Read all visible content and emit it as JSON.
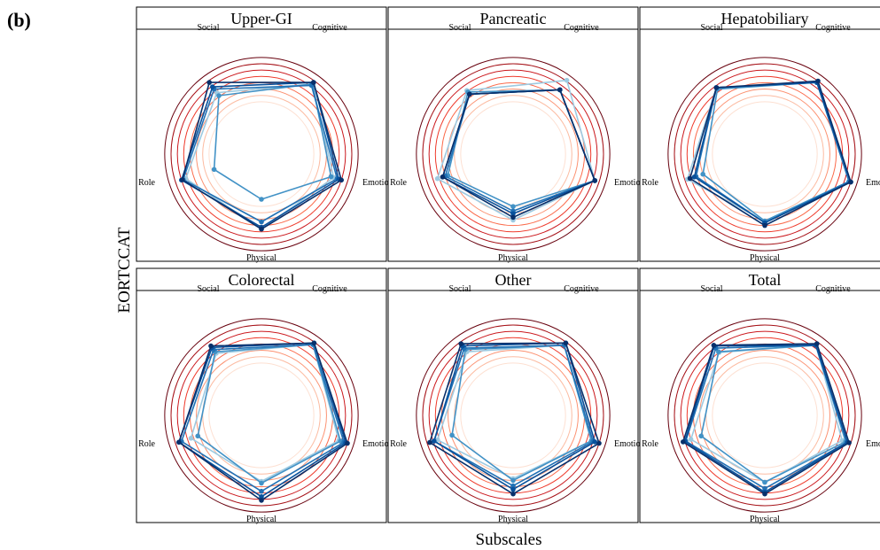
{
  "figure": {
    "panel_tag": "(b)",
    "ylabel": "EORTCCAT",
    "xlabel": "Subscales"
  },
  "colors": {
    "series": [
      "#9ecae1",
      "#4292c6",
      "#2171b5",
      "#08519c",
      "#08306b"
    ],
    "rings": [
      "#fde0d2",
      "#fcbba1",
      "#fc9272",
      "#fb6a4a",
      "#ef3b2c",
      "#cb181d",
      "#a50f15",
      "#67000d"
    ]
  },
  "chart_data": {
    "type": "radar",
    "axes": [
      "Cognitive",
      "Emotional",
      "Physical",
      "Role",
      "Social"
    ],
    "panels": [
      {
        "title": "Upper-GI",
        "series": [
          {
            "values": [
              0.96,
              0.84,
              0.83,
              0.88,
              0.84
            ]
          },
          {
            "values": [
              0.96,
              0.81,
              0.5,
              0.55,
              0.8
            ]
          },
          {
            "values": [
              0.94,
              0.88,
              0.75,
              0.91,
              0.89
            ]
          },
          {
            "values": [
              0.98,
              0.9,
              0.81,
              0.93,
              0.92
            ]
          },
          {
            "values": [
              0.98,
              0.93,
              0.83,
              0.92,
              0.98
            ]
          }
        ]
      },
      {
        "title": "Pancreatic",
        "series": [
          {
            "values": [
              1.01,
              0.95,
              0.73,
              0.88,
              0.87
            ]
          },
          {
            "values": [
              0.88,
              0.95,
              0.58,
              0.76,
              0.85
            ]
          },
          {
            "values": [
              0.88,
              0.95,
              0.63,
              0.79,
              0.82
            ]
          },
          {
            "values": [
              0.88,
              0.95,
              0.66,
              0.82,
              0.82
            ]
          },
          {
            "values": [
              0.88,
              0.95,
              0.7,
              0.82,
              0.82
            ]
          }
        ]
      },
      {
        "title": "Hepatobiliary",
        "series": [
          {
            "values": [
              0.98,
              1.0,
              0.74,
              0.9,
              0.91
            ]
          },
          {
            "values": [
              0.98,
              0.98,
              0.74,
              0.72,
              0.89
            ]
          },
          {
            "values": [
              0.98,
              0.98,
              0.76,
              0.8,
              0.91
            ]
          },
          {
            "values": [
              0.98,
              1.0,
              0.76,
              0.82,
              0.91
            ]
          },
          {
            "values": [
              1.0,
              1.0,
              0.79,
              0.87,
              0.91
            ]
          }
        ]
      },
      {
        "title": "Colorectal",
        "series": [
          {
            "values": [
              0.97,
              0.9,
              0.73,
              0.82,
              0.85
            ]
          },
          {
            "values": [
              0.97,
              0.92,
              0.75,
              0.74,
              0.87
            ]
          },
          {
            "values": [
              0.97,
              0.96,
              0.84,
              0.93,
              0.9
            ]
          },
          {
            "values": [
              0.99,
              0.98,
              0.9,
              0.96,
              0.93
            ]
          },
          {
            "values": [
              0.99,
              1.0,
              0.94,
              0.96,
              0.95
            ]
          }
        ]
      },
      {
        "title": "Other",
        "series": [
          {
            "values": [
              0.96,
              0.91,
              0.7,
              0.88,
              0.87
            ]
          },
          {
            "values": [
              0.96,
              0.91,
              0.72,
              0.71,
              0.9
            ]
          },
          {
            "values": [
              0.96,
              0.93,
              0.78,
              0.92,
              0.92
            ]
          },
          {
            "values": [
              0.99,
              0.95,
              0.82,
              0.92,
              0.95
            ]
          },
          {
            "values": [
              0.99,
              1.0,
              0.87,
              0.97,
              0.98
            ]
          }
        ]
      },
      {
        "title": "Total",
        "series": [
          {
            "values": [
              0.96,
              0.9,
              0.74,
              0.86,
              0.86
            ]
          },
          {
            "values": [
              0.96,
              0.94,
              0.74,
              0.74,
              0.87
            ]
          },
          {
            "values": [
              0.96,
              0.96,
              0.81,
              0.92,
              0.92
            ]
          },
          {
            "values": [
              0.96,
              0.96,
              0.85,
              0.93,
              0.95
            ]
          },
          {
            "values": [
              0.98,
              0.98,
              0.87,
              0.95,
              0.96
            ]
          }
        ]
      }
    ],
    "rlim": [
      0,
      1
    ],
    "grid": true,
    "legend": "none"
  }
}
